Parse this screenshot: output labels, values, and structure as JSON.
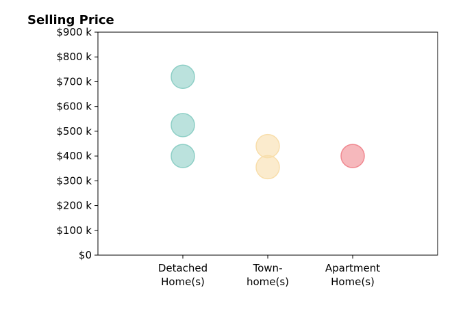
{
  "chart_data": {
    "type": "scatter",
    "title": "Selling Price",
    "xlabel": "",
    "ylabel": "",
    "categories": [
      {
        "key": "detached",
        "lines": [
          "Detached",
          "Home(s)"
        ]
      },
      {
        "key": "townhome",
        "lines": [
          "Town-",
          "home(s)"
        ]
      },
      {
        "key": "apartment",
        "lines": [
          "Apartment",
          "Home(s)"
        ]
      }
    ],
    "xlim": [
      -1,
      3
    ],
    "ylim": [
      0,
      900
    ],
    "yticks": [
      {
        "value": 0,
        "label": "$0"
      },
      {
        "value": 100,
        "label": "$100 k"
      },
      {
        "value": 200,
        "label": "$200 k"
      },
      {
        "value": 300,
        "label": "$300 k"
      },
      {
        "value": 400,
        "label": "$400 k"
      },
      {
        "value": 500,
        "label": "$500 k"
      },
      {
        "value": 600,
        "label": "$600 k"
      },
      {
        "value": 700,
        "label": "$700 k"
      },
      {
        "value": 800,
        "label": "$800 k"
      },
      {
        "value": 900,
        "label": "$900 k"
      }
    ],
    "series": [
      {
        "category": "detached",
        "color": "#8ecfc6",
        "values": [
          720,
          525,
          400
        ]
      },
      {
        "category": "townhome",
        "color": "#f8deab",
        "values": [
          440,
          355
        ]
      },
      {
        "category": "apartment",
        "color": "#f08890",
        "values": [
          400
        ]
      }
    ],
    "grid": false,
    "legend": "none"
  }
}
